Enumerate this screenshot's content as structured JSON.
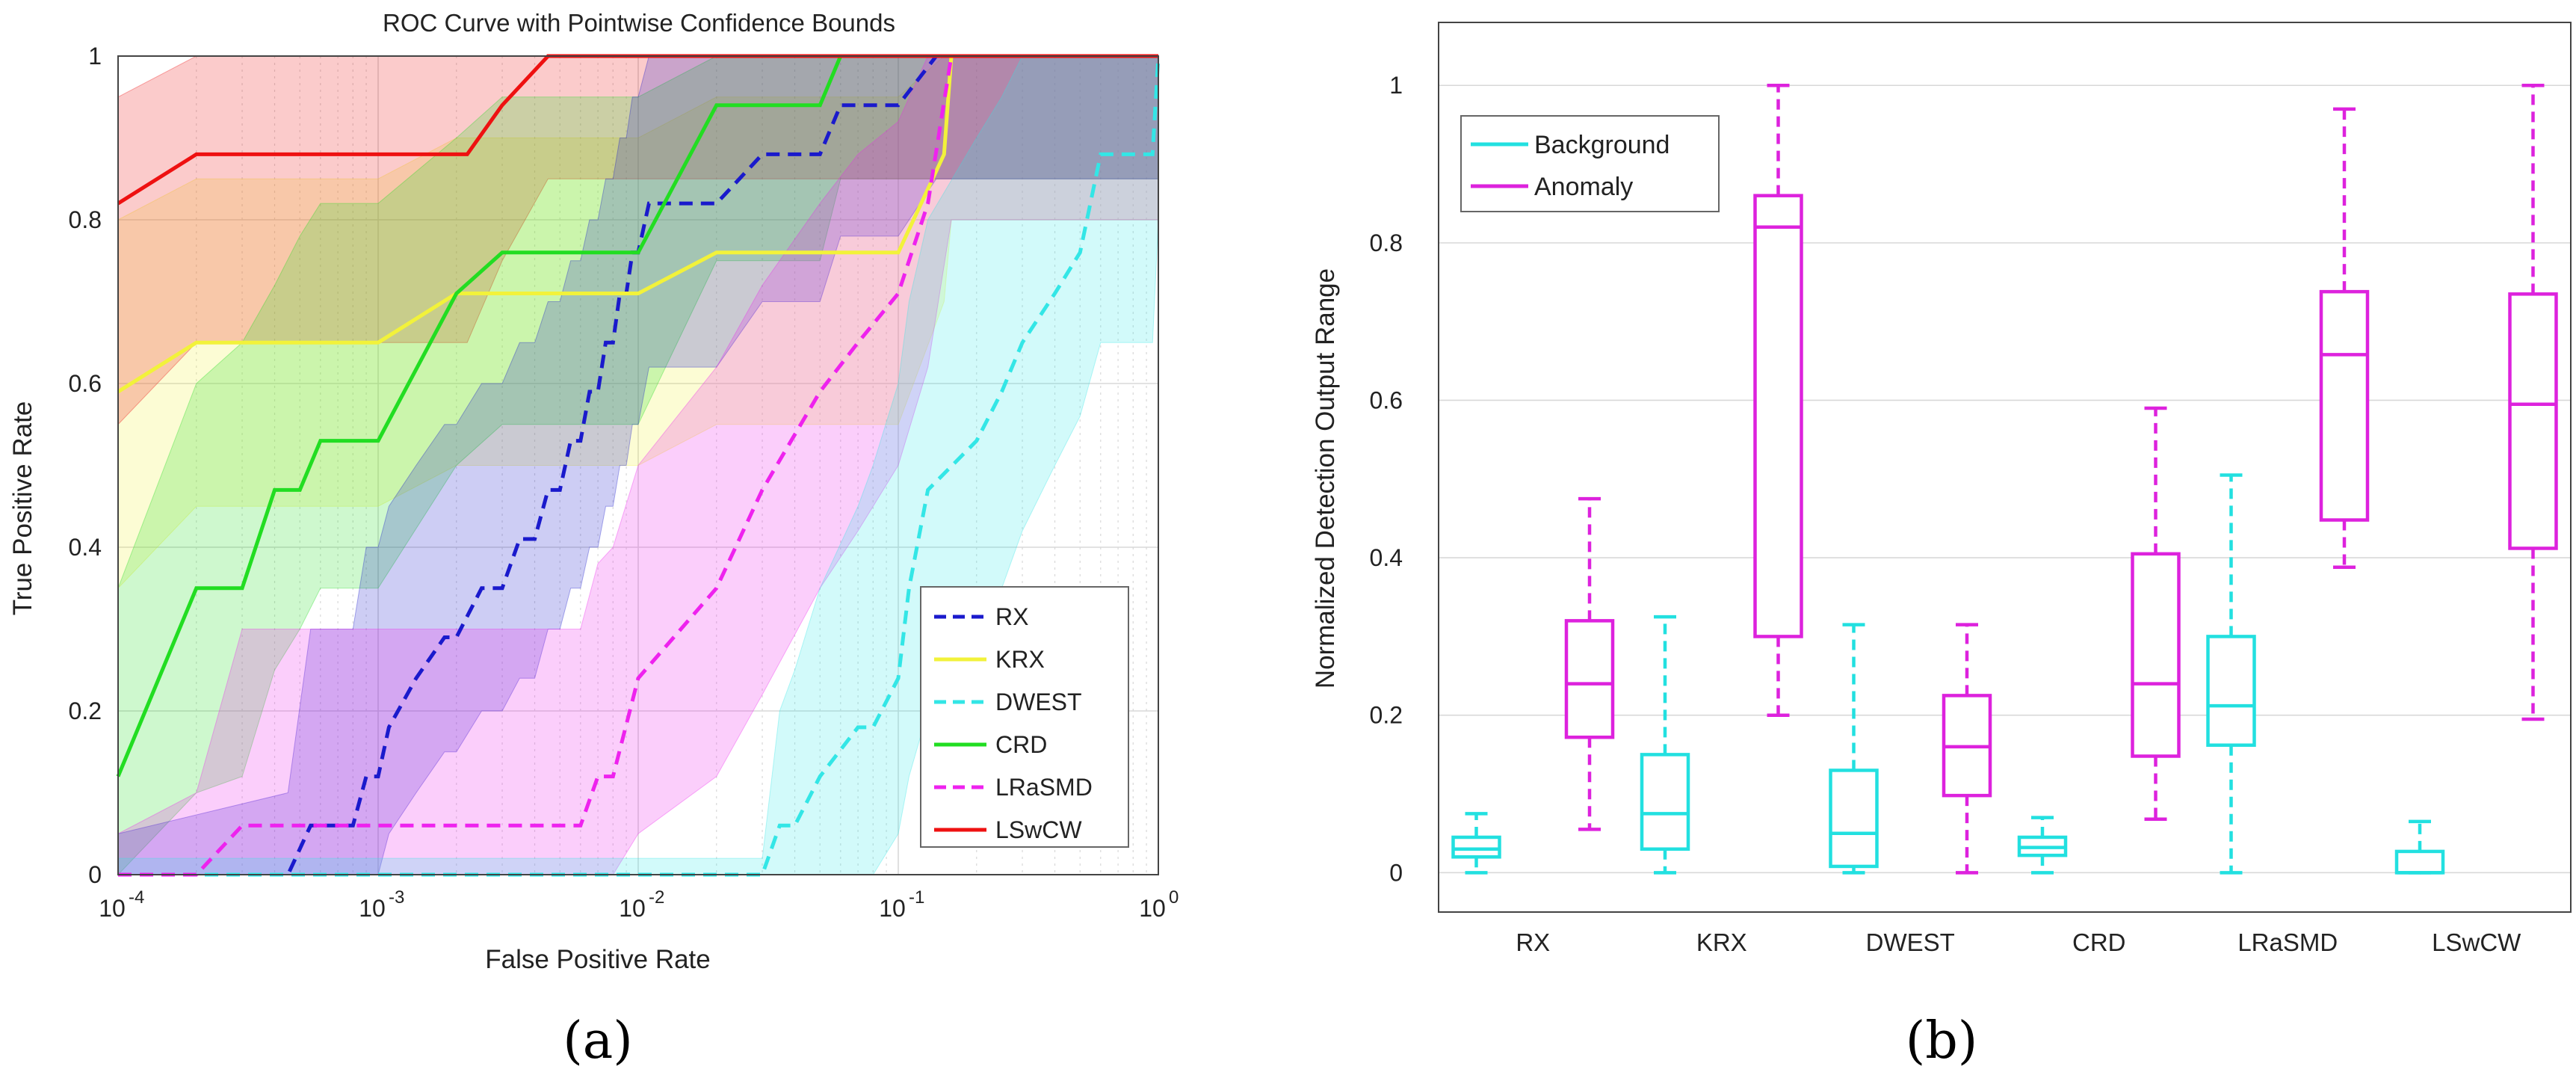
{
  "colors": {
    "RX": "#1a1acc",
    "KRX": "#f2f23a",
    "DWEST": "#33e6e6",
    "CRD": "#22dd22",
    "LRaSMD": "#ee22ee",
    "LSwCW": "#ee1111",
    "Background": "#22e0e0",
    "Anomaly": "#dd22dd",
    "grid": "#d8d8d8",
    "axis": "#333333"
  },
  "chart_data": [
    {
      "type": "line",
      "panel_label": "(a)",
      "title": "ROC Curve with Pointwise Confidence Bounds",
      "xlabel": "False Positive Rate",
      "ylabel": "True Positive Rate",
      "xscale": "log",
      "xlim": [
        0.0001,
        1
      ],
      "ylim": [
        0,
        1
      ],
      "x_tick_labels": [
        "10 -4",
        "10 -3",
        "10 -2",
        "10 -1",
        "10 0"
      ],
      "y_tick_labels": [
        "0",
        "0.2",
        "0.4",
        "0.6",
        "0.8",
        "1"
      ],
      "y_ticks": [
        0,
        0.2,
        0.4,
        0.6,
        0.8,
        1
      ],
      "grid": true,
      "legend_position": "lower-right",
      "legend": [
        "RX",
        "KRX",
        "DWEST",
        "CRD",
        "LRaSMD",
        "LSwCW"
      ],
      "series": [
        {
          "name": "RX",
          "style": "dashed",
          "x": [
            0.0001,
            0.00045,
            0.00055,
            0.0008,
            0.0009,
            0.001,
            0.0011,
            0.0014,
            0.0018,
            0.002,
            0.0025,
            0.003,
            0.0035,
            0.004,
            0.0045,
            0.005,
            0.0055,
            0.006,
            0.0065,
            0.007,
            0.0075,
            0.008,
            0.0085,
            0.009,
            0.0095,
            0.01,
            0.011,
            0.012,
            0.02,
            0.03,
            0.05,
            0.06,
            0.09,
            0.1,
            0.14,
            1
          ],
          "y": [
            0,
            0,
            0.06,
            0.06,
            0.12,
            0.12,
            0.18,
            0.24,
            0.29,
            0.29,
            0.35,
            0.35,
            0.41,
            0.41,
            0.47,
            0.47,
            0.53,
            0.53,
            0.59,
            0.59,
            0.65,
            0.65,
            0.71,
            0.71,
            0.76,
            0.76,
            0.82,
            0.82,
            0.82,
            0.88,
            0.88,
            0.94,
            0.94,
            0.94,
            1,
            1
          ],
          "band_lower": [
            0,
            0,
            0,
            0,
            0,
            0,
            0.05,
            0.1,
            0.15,
            0.15,
            0.2,
            0.2,
            0.24,
            0.24,
            0.3,
            0.3,
            0.35,
            0.35,
            0.4,
            0.4,
            0.45,
            0.45,
            0.5,
            0.5,
            0.55,
            0.55,
            0.62,
            0.62,
            0.62,
            0.7,
            0.7,
            0.78,
            0.78,
            0.78,
            0.85,
            0.85
          ],
          "band_upper": [
            0.05,
            0.1,
            0.3,
            0.3,
            0.4,
            0.4,
            0.45,
            0.5,
            0.55,
            0.55,
            0.6,
            0.6,
            0.65,
            0.65,
            0.7,
            0.7,
            0.75,
            0.75,
            0.8,
            0.8,
            0.85,
            0.85,
            0.9,
            0.9,
            0.95,
            0.95,
            1,
            1,
            1,
            1,
            1,
            1,
            1,
            1,
            1,
            1
          ]
        },
        {
          "name": "KRX",
          "style": "solid",
          "x": [
            0.0001,
            0.0002,
            0.001,
            0.002,
            0.003,
            0.01,
            0.02,
            0.05,
            0.1,
            0.15,
            0.16,
            1
          ],
          "y": [
            0.59,
            0.65,
            0.65,
            0.71,
            0.71,
            0.71,
            0.76,
            0.76,
            0.76,
            0.88,
            1,
            1
          ],
          "band_lower": [
            0.35,
            0.45,
            0.45,
            0.5,
            0.5,
            0.5,
            0.55,
            0.55,
            0.55,
            0.7,
            0.8,
            0.8
          ],
          "band_upper": [
            0.8,
            0.85,
            0.85,
            0.9,
            0.9,
            0.9,
            0.95,
            0.95,
            0.95,
            1,
            1,
            1
          ]
        },
        {
          "name": "DWEST",
          "style": "dashed",
          "x": [
            0.0001,
            0.03,
            0.035,
            0.04,
            0.05,
            0.07,
            0.08,
            0.1,
            0.11,
            0.13,
            0.2,
            0.25,
            0.3,
            0.4,
            0.5,
            0.6,
            0.95,
            1
          ],
          "y": [
            0,
            0,
            0.06,
            0.06,
            0.12,
            0.18,
            0.18,
            0.24,
            0.35,
            0.47,
            0.53,
            0.59,
            0.65,
            0.71,
            0.76,
            0.88,
            0.88,
            1
          ],
          "band_lower": [
            0,
            0,
            0,
            0,
            0,
            0,
            0,
            0.05,
            0.12,
            0.2,
            0.28,
            0.35,
            0.42,
            0.5,
            0.56,
            0.65,
            0.65,
            0.8
          ],
          "band_upper": [
            0.02,
            0.02,
            0.2,
            0.25,
            0.35,
            0.45,
            0.5,
            0.6,
            0.7,
            0.8,
            0.9,
            0.95,
            1,
            1,
            1,
            1,
            1,
            1
          ]
        },
        {
          "name": "CRD",
          "style": "solid",
          "x": [
            0.0001,
            0.0002,
            0.0003,
            0.0004,
            0.0005,
            0.0006,
            0.001,
            0.002,
            0.003,
            0.005,
            0.01,
            0.02,
            0.05,
            0.06,
            1
          ],
          "y": [
            0.12,
            0.35,
            0.35,
            0.47,
            0.47,
            0.53,
            0.53,
            0.71,
            0.76,
            0.76,
            0.76,
            0.94,
            0.94,
            1,
            1
          ],
          "band_lower": [
            0,
            0.1,
            0.12,
            0.25,
            0.3,
            0.35,
            0.35,
            0.5,
            0.55,
            0.55,
            0.55,
            0.75,
            0.75,
            0.85,
            0.85
          ],
          "band_upper": [
            0.35,
            0.6,
            0.65,
            0.72,
            0.78,
            0.82,
            0.82,
            0.9,
            0.95,
            0.95,
            0.95,
            1,
            1,
            1,
            1
          ]
        },
        {
          "name": "LRaSMD",
          "style": "dashed",
          "x": [
            0.0001,
            0.0002,
            0.0003,
            0.006,
            0.007,
            0.008,
            0.01,
            0.02,
            0.03,
            0.05,
            0.07,
            0.1,
            0.13,
            0.16,
            1
          ],
          "y": [
            0,
            0,
            0.06,
            0.06,
            0.12,
            0.12,
            0.24,
            0.35,
            0.47,
            0.59,
            0.65,
            0.71,
            0.82,
            1,
            1
          ],
          "band_lower": [
            0,
            0,
            0,
            0,
            0,
            0,
            0.05,
            0.12,
            0.22,
            0.35,
            0.42,
            0.5,
            0.62,
            0.8,
            0.8
          ],
          "band_upper": [
            0.05,
            0.1,
            0.3,
            0.3,
            0.38,
            0.4,
            0.5,
            0.62,
            0.72,
            0.82,
            0.88,
            0.92,
            1,
            1,
            1
          ]
        },
        {
          "name": "LSwCW",
          "style": "solid",
          "x": [
            0.0001,
            0.0002,
            0.0022,
            0.003,
            0.0045,
            1
          ],
          "y": [
            0.82,
            0.88,
            0.88,
            0.94,
            1,
            1
          ],
          "band_lower": [
            0.55,
            0.65,
            0.65,
            0.75,
            0.85,
            0.85
          ],
          "band_upper": [
            0.95,
            1,
            1,
            1,
            1,
            1
          ]
        }
      ]
    },
    {
      "type": "box",
      "panel_label": "(b)",
      "title": "",
      "xlabel": "",
      "ylabel": "Normalized Detection Output Range",
      "ylim": [
        -0.05,
        1.08
      ],
      "y_ticks": [
        0,
        0.2,
        0.4,
        0.6,
        0.8,
        1
      ],
      "y_tick_labels": [
        "0",
        "0.2",
        "0.4",
        "0.6",
        "0.8",
        "1"
      ],
      "categories": [
        "RX",
        "KRX",
        "DWEST",
        "CRD",
        "LRaSMD",
        "LSwCW"
      ],
      "grid": true,
      "legend_position": "top-left",
      "legend": [
        "Background",
        "Anomaly"
      ],
      "series": [
        {
          "name": "Background",
          "boxes": [
            {
              "min": 0.0,
              "q1": 0.02,
              "median": 0.03,
              "q3": 0.045,
              "max": 0.075
            },
            {
              "min": 0.0,
              "q1": 0.03,
              "median": 0.075,
              "q3": 0.15,
              "max": 0.325
            },
            {
              "min": 0.0,
              "q1": 0.008,
              "median": 0.05,
              "q3": 0.13,
              "max": 0.315
            },
            {
              "min": 0.0,
              "q1": 0.022,
              "median": 0.032,
              "q3": 0.045,
              "max": 0.07
            },
            {
              "min": 0.0,
              "q1": 0.162,
              "median": 0.212,
              "q3": 0.3,
              "max": 0.505
            },
            {
              "min": 0.0,
              "q1": 0.0,
              "median": 0.0,
              "q3": 0.027,
              "max": 0.065
            }
          ]
        },
        {
          "name": "Anomaly",
          "boxes": [
            {
              "min": 0.055,
              "q1": 0.172,
              "median": 0.24,
              "q3": 0.32,
              "max": 0.475
            },
            {
              "min": 0.2,
              "q1": 0.3,
              "median": 0.82,
              "q3": 0.86,
              "max": 1.0
            },
            {
              "min": 0.0,
              "q1": 0.098,
              "median": 0.16,
              "q3": 0.225,
              "max": 0.315
            },
            {
              "min": 0.068,
              "q1": 0.148,
              "median": 0.24,
              "q3": 0.405,
              "max": 0.59
            },
            {
              "min": 0.388,
              "q1": 0.448,
              "median": 0.658,
              "q3": 0.738,
              "max": 0.97
            },
            {
              "min": 0.195,
              "q1": 0.412,
              "median": 0.595,
              "q3": 0.735,
              "max": 1.0
            }
          ]
        }
      ]
    }
  ]
}
